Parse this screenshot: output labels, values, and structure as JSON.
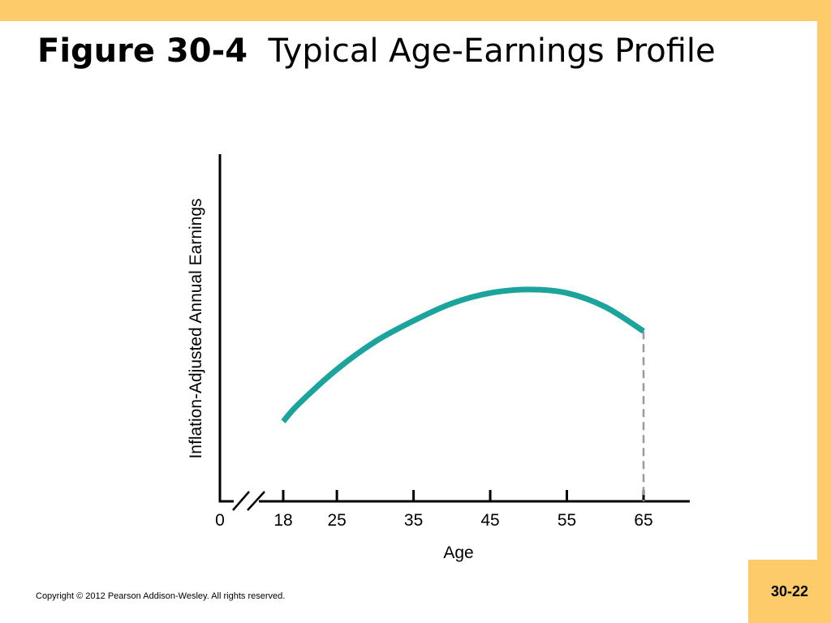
{
  "slide": {
    "title_bold": "Figure 30-4",
    "title_normal": "Typical Age-Earnings Profile",
    "slide_number": "30-22",
    "copyright": "Copyright © 2012 Pearson Addison-Wesley. All rights reserved."
  },
  "colors": {
    "frame": "#FDCB6A",
    "curve": "#1BA39C",
    "axis": "#000000",
    "dashed_line": "#9A9A9A"
  },
  "chart_data": {
    "type": "line",
    "title": "",
    "xlabel": "Age",
    "ylabel": "Inflation-Adjusted Annual Earnings",
    "x_ticks": [
      "0",
      "18",
      "25",
      "35",
      "45",
      "55",
      "65"
    ],
    "axis_break": true,
    "y_ticks": [],
    "grid": false,
    "series": [
      {
        "name": "",
        "x": [
          18,
          20,
          25,
          30,
          35,
          40,
          45,
          50,
          55,
          60,
          65
        ],
        "y": [
          0.23,
          0.28,
          0.38,
          0.46,
          0.52,
          0.57,
          0.6,
          0.61,
          0.6,
          0.56,
          0.49
        ]
      }
    ],
    "annotations": [
      {
        "type": "dashed-vertical-line",
        "x": 65
      }
    ]
  }
}
